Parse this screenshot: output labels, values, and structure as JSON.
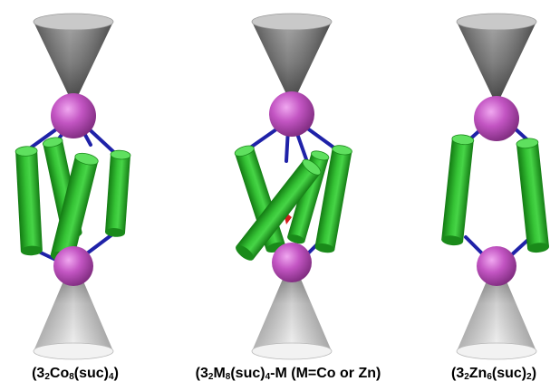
{
  "structures": [
    {
      "caption_parts": [
        {
          "t": "(3"
        },
        {
          "t": "2",
          "sub": true
        },
        {
          "t": "Co"
        },
        {
          "t": "8",
          "sub": true
        },
        {
          "t": "(suc)"
        },
        {
          "t": "4",
          "sub": true
        },
        {
          "t": ")"
        }
      ]
    },
    {
      "caption_parts": [
        {
          "t": "(3"
        },
        {
          "t": "2",
          "sub": true
        },
        {
          "t": "M"
        },
        {
          "t": "8",
          "sub": true
        },
        {
          "t": "(suc)"
        },
        {
          "t": "4",
          "sub": true
        },
        {
          "t": "-M (M=Co or Zn)"
        }
      ]
    },
    {
      "caption_parts": [
        {
          "t": "(3"
        },
        {
          "t": "2",
          "sub": true
        },
        {
          "t": "Zn"
        },
        {
          "t": "6",
          "sub": true
        },
        {
          "t": "(suc)"
        },
        {
          "t": "2",
          "sub": true
        },
        {
          "t": ")"
        }
      ]
    }
  ],
  "colors": {
    "sphere": "#c355c3",
    "rod": "#2fb52f",
    "bond": "#1f22a8",
    "cone_dark": "#2a2a2a",
    "cone_light": "#e6e6e6",
    "defect": "#d41e1e"
  }
}
